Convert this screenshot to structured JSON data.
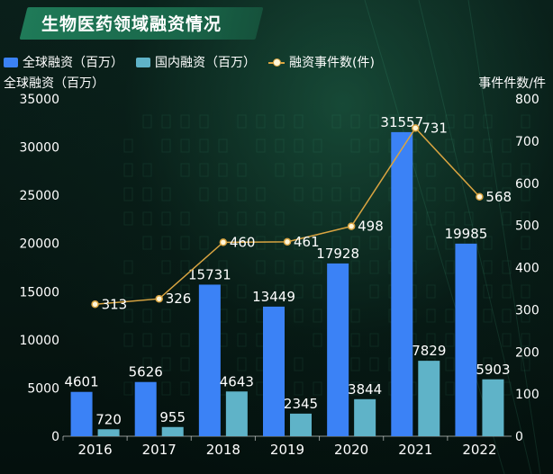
{
  "title": "生物医药领域融资情况",
  "legend": {
    "global": "全球融资（百万）",
    "domestic": "国内融资（百万）",
    "events": "融资事件数(件)"
  },
  "axes": {
    "left_title": "全球融资（百万）",
    "right_title": "事件件数/件"
  },
  "colors": {
    "global_bar": "#3b82f6",
    "domestic_bar": "#5fb3c8",
    "line": "#d9a441",
    "marker": "#fff6d8",
    "text": "#ffffff"
  },
  "chart_data": {
    "type": "bar",
    "title": "生物医药领域融资情况",
    "categories": [
      "2016",
      "2017",
      "2018",
      "2019",
      "2020",
      "2021",
      "2022"
    ],
    "series": [
      {
        "name": "全球融资（百万）",
        "type": "bar",
        "axis": "left",
        "values": [
          4601,
          5626,
          15731,
          13449,
          17928,
          31557,
          19985
        ]
      },
      {
        "name": "国内融资（百万）",
        "type": "bar",
        "axis": "left",
        "values": [
          720,
          955,
          4643,
          2345,
          3844,
          7829,
          5903
        ]
      },
      {
        "name": "融资事件数(件)",
        "type": "line",
        "axis": "right",
        "values": [
          313,
          326,
          460,
          461,
          498,
          731,
          568
        ]
      }
    ],
    "ylabel": "全球融资（百万）",
    "y2label": "事件件数/件",
    "ylim": [
      0,
      35000
    ],
    "y2lim": [
      0,
      800
    ],
    "yticks": [
      0,
      5000,
      10000,
      15000,
      20000,
      25000,
      30000,
      35000
    ],
    "y2ticks": [
      0,
      100,
      200,
      300,
      400,
      500,
      600,
      700,
      800
    ],
    "grid": false,
    "legend_position": "top-left"
  }
}
